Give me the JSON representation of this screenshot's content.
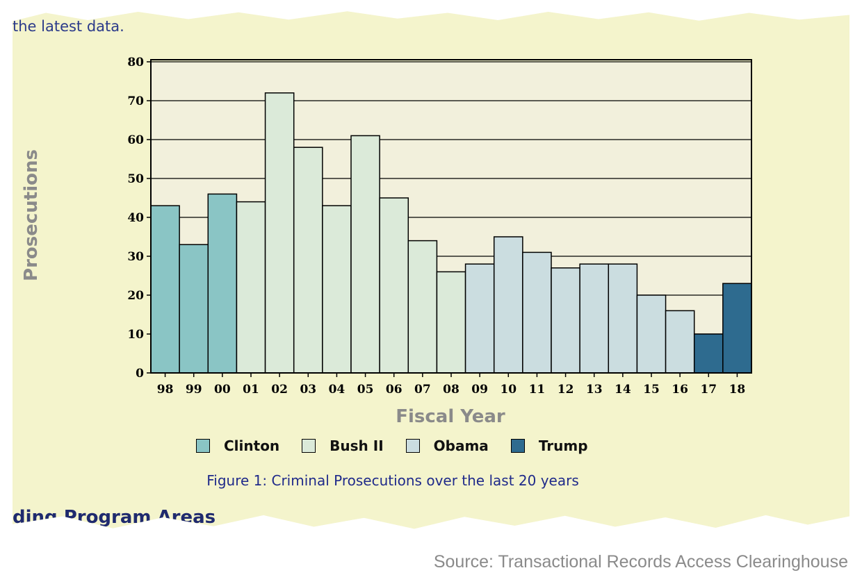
{
  "page": {
    "top_text": "the latest data.",
    "bottom_text": "ding Program Areas",
    "source": "Source: Transactional Records Access Clearinghouse"
  },
  "chart_data": {
    "type": "bar",
    "title": "Figure 1: Criminal Prosecutions over the last 20 years",
    "xlabel": "Fiscal Year",
    "ylabel": "Prosecutions",
    "ylim": [
      0,
      80
    ],
    "yticks": [
      0,
      10,
      20,
      30,
      40,
      50,
      60,
      70,
      80
    ],
    "grid": "horizontal",
    "categories": [
      "98",
      "99",
      "00",
      "01",
      "02",
      "03",
      "04",
      "05",
      "06",
      "07",
      "08",
      "09",
      "10",
      "11",
      "12",
      "13",
      "14",
      "15",
      "16",
      "17",
      "18"
    ],
    "values": [
      43,
      33,
      46,
      44,
      72,
      58,
      43,
      61,
      45,
      34,
      26,
      28,
      35,
      31,
      27,
      28,
      28,
      20,
      16,
      10,
      23
    ],
    "groups": [
      "Clinton",
      "Clinton",
      "Clinton",
      "Bush II",
      "Bush II",
      "Bush II",
      "Bush II",
      "Bush II",
      "Bush II",
      "Bush II",
      "Bush II",
      "Obama",
      "Obama",
      "Obama",
      "Obama",
      "Obama",
      "Obama",
      "Obama",
      "Obama",
      "Trump",
      "Trump"
    ],
    "legend": [
      {
        "name": "Clinton",
        "color": "#8ac5c5"
      },
      {
        "name": "Bush II",
        "color": "#dbead9"
      },
      {
        "name": "Obama",
        "color": "#cbdde0"
      },
      {
        "name": "Trump",
        "color": "#2e6b8f"
      }
    ],
    "legend_position": "bottom",
    "plot_background": "#f2f0dc"
  }
}
